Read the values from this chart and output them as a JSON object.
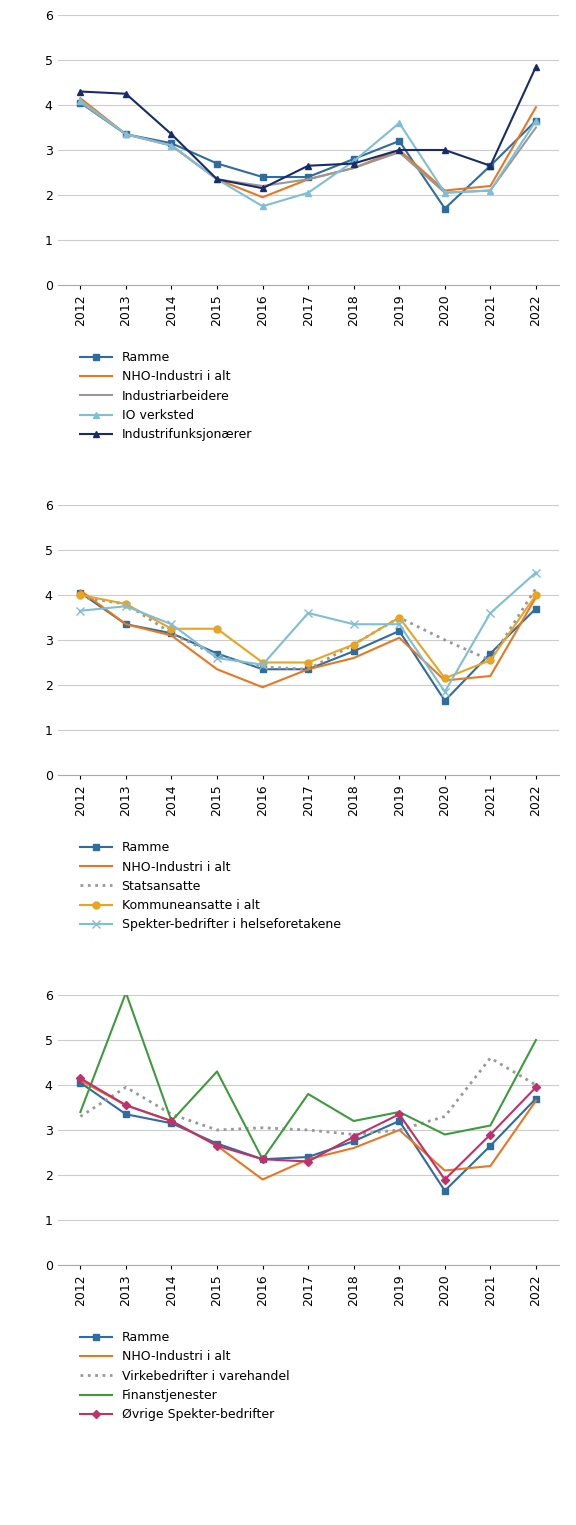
{
  "years": [
    2012,
    2013,
    2014,
    2015,
    2016,
    2017,
    2018,
    2019,
    2020,
    2021,
    2022
  ],
  "chart1": {
    "series": {
      "Ramme": {
        "values": [
          4.05,
          3.35,
          3.15,
          2.7,
          2.4,
          2.4,
          2.8,
          3.2,
          1.7,
          2.65,
          3.65
        ],
        "color": "#2E6D9E",
        "marker": "s",
        "linestyle": "-",
        "linewidth": 1.5,
        "markersize": 5
      },
      "NHO-Industri i alt": {
        "values": [
          4.15,
          3.35,
          3.1,
          2.35,
          1.95,
          2.35,
          2.6,
          3.0,
          2.1,
          2.2,
          3.95
        ],
        "color": "#E87722",
        "marker": "None",
        "linestyle": "-",
        "linewidth": 1.5,
        "markersize": 5
      },
      "Industriarbeidere": {
        "values": [
          4.05,
          3.35,
          3.1,
          2.35,
          2.2,
          2.35,
          2.6,
          2.95,
          2.05,
          2.1,
          3.5
        ],
        "color": "#999999",
        "marker": "None",
        "linestyle": "-",
        "linewidth": 1.5,
        "markersize": 5
      },
      "IO verksted": {
        "values": [
          4.1,
          3.35,
          3.1,
          2.35,
          1.75,
          2.05,
          2.75,
          3.6,
          2.05,
          2.1,
          3.65
        ],
        "color": "#7FBED6",
        "marker": "^",
        "linestyle": "-",
        "linewidth": 1.5,
        "markersize": 5
      },
      "Industrifunksjonærer": {
        "values": [
          4.3,
          4.25,
          3.35,
          2.35,
          2.15,
          2.65,
          2.7,
          3.0,
          3.0,
          2.65,
          4.85
        ],
        "color": "#1A2B6B",
        "marker": "^",
        "linestyle": "-",
        "linewidth": 1.5,
        "markersize": 5
      }
    },
    "legend": [
      "Ramme",
      "NHO-Industri i alt",
      "Industriarbeidere",
      "IO verksted",
      "Industrifunksjonærer"
    ]
  },
  "chart2": {
    "series": {
      "Ramme": {
        "values": [
          4.05,
          3.35,
          3.15,
          2.7,
          2.35,
          2.35,
          2.75,
          3.2,
          1.65,
          2.7,
          3.7
        ],
        "color": "#2E6D9E",
        "marker": "s",
        "linestyle": "-",
        "linewidth": 1.5,
        "markersize": 5
      },
      "NHO-Industri i alt": {
        "values": [
          4.1,
          3.35,
          3.1,
          2.35,
          1.95,
          2.35,
          2.6,
          3.05,
          2.1,
          2.2,
          3.95
        ],
        "color": "#E87722",
        "marker": "None",
        "linestyle": "-",
        "linewidth": 1.5,
        "markersize": 5
      },
      "Statsansatte": {
        "values": [
          3.95,
          3.8,
          3.15,
          2.65,
          2.4,
          2.35,
          2.9,
          3.5,
          3.0,
          2.55,
          4.15
        ],
        "color": "#999999",
        "marker": "None",
        "linestyle": "dotted",
        "linewidth": 2.0,
        "markersize": 5
      },
      "Kommuneansatte i alt": {
        "values": [
          4.0,
          3.8,
          3.25,
          3.25,
          2.5,
          2.5,
          2.9,
          3.5,
          2.15,
          2.55,
          4.0
        ],
        "color": "#E8A422",
        "marker": "o",
        "linestyle": "-",
        "linewidth": 1.5,
        "markersize": 5
      },
      "Spekter-bedrifter i helseforetakene": {
        "values": [
          3.65,
          3.75,
          3.35,
          2.6,
          2.45,
          3.6,
          3.35,
          3.35,
          1.85,
          3.6,
          4.5
        ],
        "color": "#7FBED6",
        "marker": "x",
        "linestyle": "-",
        "linewidth": 1.5,
        "markersize": 6
      }
    },
    "legend": [
      "Ramme",
      "NHO-Industri i alt",
      "Statsansatte",
      "Kommuneansatte i alt",
      "Spekter-bedrifter i helseforetakene"
    ]
  },
  "chart3": {
    "series": {
      "Ramme": {
        "values": [
          4.05,
          3.35,
          3.15,
          2.7,
          2.35,
          2.4,
          2.75,
          3.2,
          1.65,
          2.65,
          3.7
        ],
        "color": "#2E6D9E",
        "marker": "s",
        "linestyle": "-",
        "linewidth": 1.5,
        "markersize": 5
      },
      "NHO-Industri i alt": {
        "values": [
          4.1,
          3.55,
          3.2,
          2.65,
          1.9,
          2.35,
          2.6,
          3.0,
          2.1,
          2.2,
          3.65
        ],
        "color": "#E87722",
        "marker": "None",
        "linestyle": "-",
        "linewidth": 1.5,
        "markersize": 5
      },
      "Virkebedrifter i varehandel": {
        "values": [
          3.3,
          3.95,
          3.35,
          3.0,
          3.05,
          3.0,
          2.9,
          3.0,
          3.3,
          4.6,
          4.0
        ],
        "color": "#999999",
        "marker": "None",
        "linestyle": "dotted",
        "linewidth": 2.0,
        "markersize": 5
      },
      "Finanstjenester": {
        "values": [
          3.4,
          6.05,
          3.2,
          4.3,
          2.35,
          3.8,
          3.2,
          3.4,
          2.9,
          3.1,
          5.0
        ],
        "color": "#3D9B3D",
        "marker": "None",
        "linestyle": "-",
        "linewidth": 1.5,
        "markersize": 5
      },
      "Øvrige Spekter-bedrifter": {
        "values": [
          4.15,
          3.55,
          3.2,
          2.65,
          2.35,
          2.3,
          2.85,
          3.35,
          1.9,
          2.9,
          3.95
        ],
        "color": "#C0306A",
        "marker": "D",
        "linestyle": "-",
        "linewidth": 1.5,
        "markersize": 4
      }
    },
    "legend": [
      "Ramme",
      "NHO-Industri i alt",
      "Virkebedrifter i varehandel",
      "Finanstjenester",
      "Øvrige Spekter-bedrifter"
    ]
  },
  "ylim": [
    0,
    6
  ],
  "yticks": [
    0,
    1,
    2,
    3,
    4,
    5,
    6
  ],
  "background_color": "#ffffff",
  "legend_fontsize": 9,
  "tick_fontsize": 9
}
